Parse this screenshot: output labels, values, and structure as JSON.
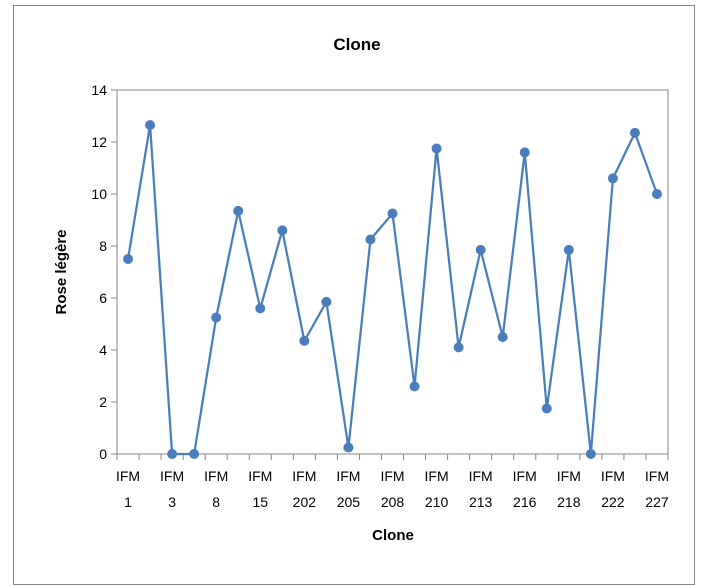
{
  "chart_data": {
    "type": "line",
    "title": "Clone",
    "xlabel": "Clone",
    "ylabel": "Rose légère",
    "ylim": [
      0,
      14
    ],
    "yticks": [
      0,
      2,
      4,
      6,
      8,
      10,
      12,
      14
    ],
    "grid": false,
    "legend": "none",
    "line_color": "#4a7ebb",
    "categories": [
      "IFM 1",
      "",
      "IFM 3",
      "",
      "IFM 8",
      "",
      "IFM 15",
      "",
      "IFM 202",
      "",
      "IFM 205",
      "",
      "IFM 208",
      "",
      "IFM 210",
      "",
      "IFM 213",
      "",
      "IFM 216",
      "",
      "IFM 218",
      "",
      "IFM 222",
      "",
      "IFM 227"
    ],
    "tick_labels": [
      {
        "index": 0,
        "line1": "IFM",
        "line2": "1"
      },
      {
        "index": 2,
        "line1": "IFM",
        "line2": "3"
      },
      {
        "index": 4,
        "line1": "IFM",
        "line2": "8"
      },
      {
        "index": 6,
        "line1": "IFM",
        "line2": "15"
      },
      {
        "index": 8,
        "line1": "IFM",
        "line2": "202"
      },
      {
        "index": 10,
        "line1": "IFM",
        "line2": "205"
      },
      {
        "index": 12,
        "line1": "IFM",
        "line2": "208"
      },
      {
        "index": 14,
        "line1": "IFM",
        "line2": "210"
      },
      {
        "index": 16,
        "line1": "IFM",
        "line2": "213"
      },
      {
        "index": 18,
        "line1": "IFM",
        "line2": "216"
      },
      {
        "index": 20,
        "line1": "IFM",
        "line2": "218"
      },
      {
        "index": 22,
        "line1": "IFM",
        "line2": "222"
      },
      {
        "index": 24,
        "line1": "IFM",
        "line2": "227"
      }
    ],
    "values": [
      7.5,
      12.65,
      0,
      0,
      5.25,
      9.35,
      5.6,
      8.6,
      4.35,
      5.85,
      0.25,
      8.25,
      9.25,
      2.6,
      11.75,
      4.1,
      7.85,
      4.5,
      11.6,
      1.75,
      7.85,
      0,
      10.6,
      12.35,
      10
    ]
  }
}
